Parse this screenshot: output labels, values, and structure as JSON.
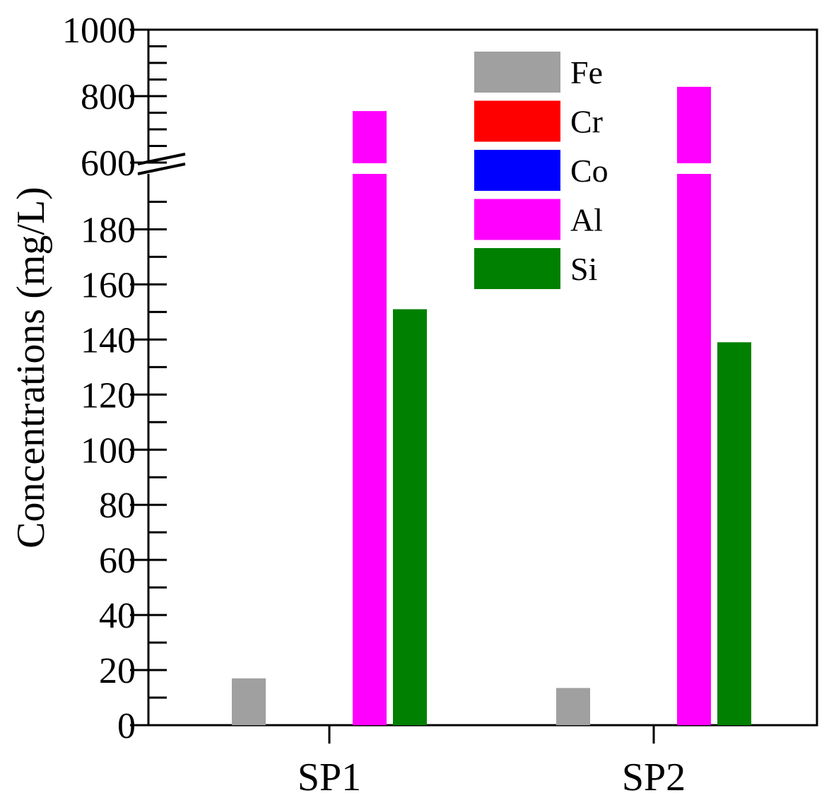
{
  "chart_data": {
    "type": "bar",
    "title": "",
    "xlabel": "",
    "ylabel": "Concentrations (mg/L)",
    "categories": [
      "SP1",
      "SP2"
    ],
    "series": [
      {
        "name": "Fe",
        "color": "#a0a0a0",
        "values": [
          17,
          13.5
        ]
      },
      {
        "name": "Cr",
        "color": "#ff0000",
        "values": [
          0,
          0
        ]
      },
      {
        "name": "Co",
        "color": "#0000ff",
        "values": [
          0,
          0
        ]
      },
      {
        "name": "Al",
        "color": "#ff00ff",
        "values": [
          755,
          828
        ]
      },
      {
        "name": "Si",
        "color": "#008000",
        "values": [
          151,
          139
        ]
      }
    ],
    "y_axis": {
      "broken": true,
      "lower_segment": {
        "range": [
          0,
          195
        ],
        "ticks": [
          "0",
          "20",
          "40",
          "60",
          "80",
          "100",
          "120",
          "140",
          "160",
          "180"
        ]
      },
      "upper_segment": {
        "range": [
          600,
          1000
        ],
        "ticks": [
          "600",
          "800",
          "1000"
        ]
      }
    },
    "legend_position": "top-right",
    "grid": false
  }
}
